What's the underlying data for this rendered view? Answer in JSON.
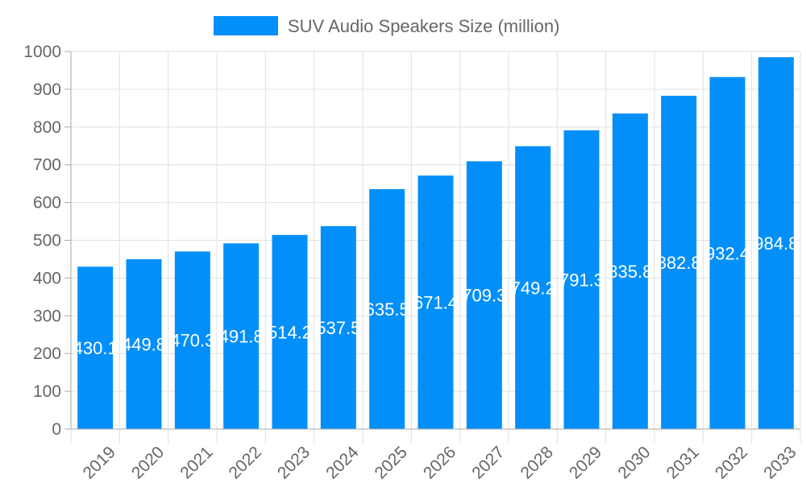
{
  "chart_data": {
    "type": "bar",
    "title": "",
    "xlabel": "",
    "ylabel": "",
    "categories": [
      "2019",
      "2020",
      "2021",
      "2022",
      "2023",
      "2024",
      "2025",
      "2026",
      "2027",
      "2028",
      "2029",
      "2030",
      "2031",
      "2032",
      "2033"
    ],
    "series": [
      {
        "name": "SUV Audio Speakers Size (million)",
        "values": [
          430.1,
          449.8,
          470.3,
          491.8,
          514.2,
          537.5,
          635.5,
          671.4,
          709.3,
          749.2,
          791.3,
          835.8,
          882.8,
          932.4,
          984.8
        ]
      }
    ],
    "ylim": [
      0,
      1000
    ],
    "yticks": [
      0,
      100,
      200,
      300,
      400,
      500,
      600,
      700,
      800,
      900,
      1000
    ],
    "grid": true,
    "legend_placement": "top",
    "data_labels": true,
    "colors": {
      "bar": "#038ffa",
      "grid": "#e0e0e0",
      "axis": "#aaaaaa",
      "text": "#666666",
      "label": "#ffffff"
    }
  }
}
